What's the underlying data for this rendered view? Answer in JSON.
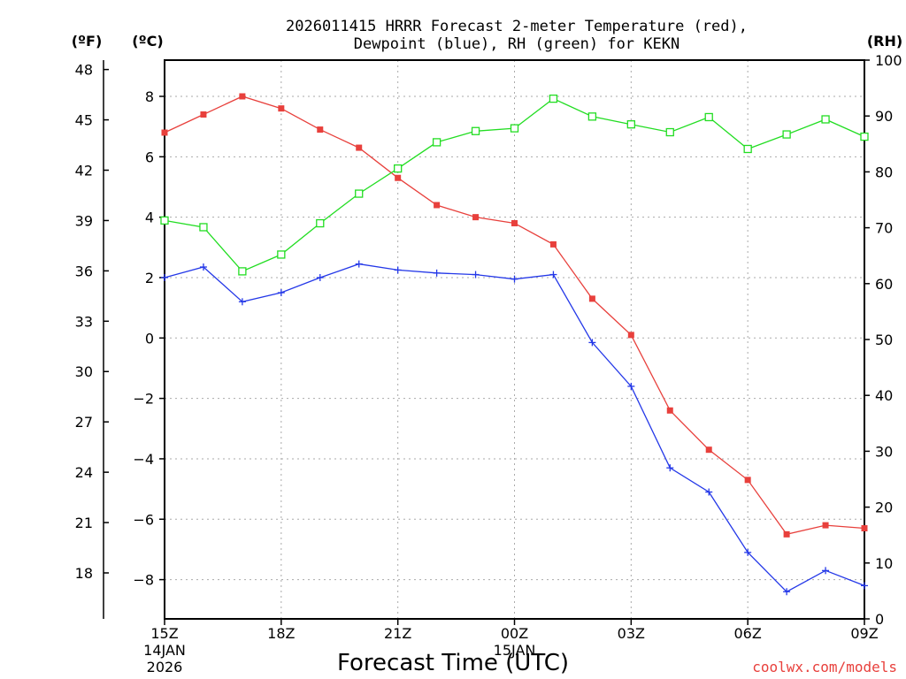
{
  "chart_data": {
    "type": "line",
    "title_line1": "2026011415 HRRR Forecast 2-meter Temperature (red),",
    "title_line2": "Dewpoint (blue), RH (green) for KEKN",
    "xlabel": "Forecast Time (UTC)",
    "credit": "coolwx.com/models",
    "left_f_unit": "(ºF)",
    "left_c_unit": "(ºC)",
    "right_unit": "(RH)",
    "x_hours": [
      15,
      16,
      17,
      18,
      19,
      20,
      21,
      22,
      23,
      24,
      25,
      26,
      27,
      28,
      29,
      30,
      31,
      32,
      33
    ],
    "x_ticks": [
      {
        "hour": 15,
        "label": "15Z",
        "sub1": "14JAN",
        "sub2": "2026"
      },
      {
        "hour": 18,
        "label": "18Z",
        "sub1": "",
        "sub2": ""
      },
      {
        "hour": 21,
        "label": "21Z",
        "sub1": "",
        "sub2": ""
      },
      {
        "hour": 24,
        "label": "00Z",
        "sub1": "15JAN",
        "sub2": ""
      },
      {
        "hour": 27,
        "label": "03Z",
        "sub1": "",
        "sub2": ""
      },
      {
        "hour": 30,
        "label": "06Z",
        "sub1": "",
        "sub2": ""
      },
      {
        "hour": 33,
        "label": "09Z",
        "sub1": "",
        "sub2": ""
      }
    ],
    "xlim": [
      15,
      33
    ],
    "celsius_axis": {
      "ylim": [
        -9.3,
        9.2
      ],
      "ticks": [
        -8,
        -6,
        -4,
        -2,
        0,
        2,
        4,
        6,
        8
      ]
    },
    "fahrenheit_axis": {
      "ticks": [
        18,
        21,
        24,
        27,
        30,
        33,
        36,
        39,
        42,
        45,
        48
      ]
    },
    "rh_axis": {
      "ylim": [
        0,
        100
      ],
      "ticks": [
        0,
        10,
        20,
        30,
        40,
        50,
        60,
        70,
        80,
        90,
        100
      ]
    },
    "series": [
      {
        "name": "Temperature",
        "unit": "C",
        "color": "#e8403c",
        "marker": "filled-square",
        "values": [
          6.8,
          7.4,
          8.0,
          7.6,
          6.9,
          6.3,
          5.3,
          4.4,
          4.0,
          3.8,
          3.1,
          1.3,
          0.1,
          -2.4,
          -3.7,
          -4.7,
          -6.5,
          -6.2,
          -6.3
        ]
      },
      {
        "name": "Dewpoint",
        "unit": "C",
        "color": "#2438e8",
        "marker": "plus",
        "values": [
          2.0,
          2.35,
          1.2,
          1.5,
          2.0,
          2.45,
          2.25,
          2.15,
          2.1,
          1.95,
          2.1,
          -0.15,
          -1.6,
          -4.3,
          -5.1,
          -7.1,
          -8.4,
          -7.7,
          -8.2
        ]
      },
      {
        "name": "RH",
        "unit": "%",
        "color": "#22dd22",
        "marker": "open-square",
        "values": [
          71.3,
          70.1,
          62.2,
          65.2,
          70.8,
          76.1,
          80.6,
          85.3,
          87.3,
          87.8,
          93.1,
          89.9,
          88.5,
          87.1,
          89.8,
          84.1,
          86.7,
          89.4,
          86.3
        ]
      }
    ]
  }
}
